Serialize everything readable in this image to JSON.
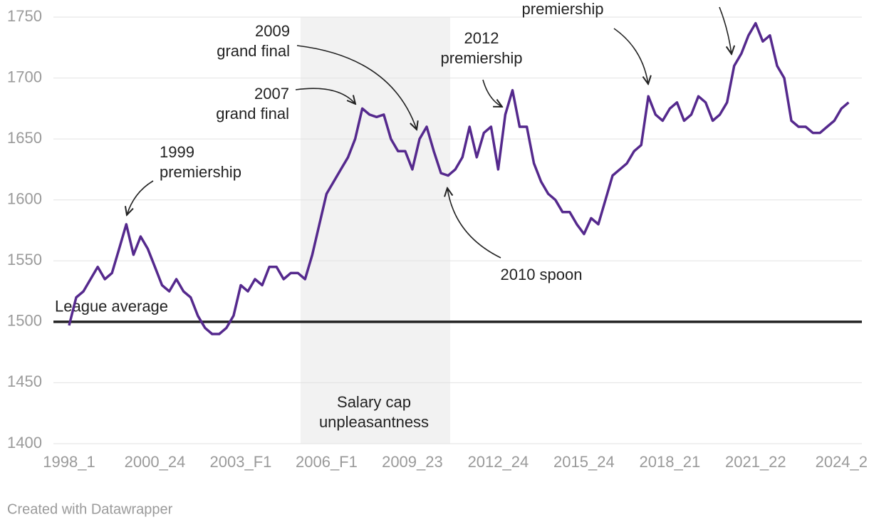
{
  "chart_data": {
    "type": "line",
    "categories": [
      "1998_1",
      null,
      null,
      null,
      null,
      null,
      null,
      null,
      null,
      null,
      null,
      null,
      "2000_24",
      null,
      null,
      null,
      null,
      null,
      null,
      null,
      null,
      null,
      null,
      null,
      "2003_F1",
      null,
      null,
      null,
      null,
      null,
      null,
      null,
      null,
      null,
      null,
      null,
      "2006_F1",
      null,
      null,
      null,
      null,
      null,
      null,
      null,
      null,
      null,
      null,
      null,
      "2009_23",
      null,
      null,
      null,
      null,
      null,
      null,
      null,
      null,
      null,
      null,
      null,
      "2012_24",
      null,
      null,
      null,
      null,
      null,
      null,
      null,
      null,
      null,
      null,
      null,
      "2015_24",
      null,
      null,
      null,
      null,
      null,
      null,
      null,
      null,
      null,
      null,
      null,
      "2018_21",
      null,
      null,
      null,
      null,
      null,
      null,
      null,
      null,
      null,
      null,
      null,
      "2021_22",
      null,
      null,
      null,
      null,
      null,
      null,
      null,
      null,
      null,
      null,
      null,
      "2024_2",
      null
    ],
    "series": [
      {
        "color": "#55298d",
        "values": [
          1497,
          1520,
          1525,
          1535,
          1545,
          1535,
          1540,
          1560,
          1580,
          1555,
          1570,
          1560,
          1545,
          1530,
          1525,
          1535,
          1525,
          1520,
          1505,
          1495,
          1490,
          1490,
          1495,
          1505,
          1530,
          1525,
          1535,
          1530,
          1545,
          1545,
          1535,
          1540,
          1540,
          1535,
          1555,
          1580,
          1605,
          1615,
          1625,
          1635,
          1650,
          1675,
          1670,
          1668,
          1670,
          1650,
          1640,
          1640,
          1625,
          1650,
          1660,
          1640,
          1622,
          1620,
          1625,
          1635,
          1660,
          1635,
          1655,
          1660,
          1625,
          1670,
          1690,
          1660,
          1660,
          1630,
          1615,
          1605,
          1600,
          1590,
          1590,
          1580,
          1572,
          1585,
          1580,
          1600,
          1620,
          1625,
          1630,
          1640,
          1645,
          1685,
          1670,
          1665,
          1675,
          1680,
          1665,
          1670,
          1685,
          1680,
          1665,
          1670,
          1680,
          1710,
          1720,
          1735,
          1745,
          1730,
          1735,
          1710,
          1700,
          1665,
          1660,
          1660,
          1655,
          1655,
          1660,
          1665,
          1675,
          1680
        ]
      }
    ],
    "ylim": [
      1400,
      1750
    ],
    "yticks": [
      1400,
      1450,
      1500,
      1550,
      1600,
      1650,
      1700,
      1750
    ],
    "grid": true,
    "reference_line": {
      "value": 1500,
      "label": "League average"
    },
    "shaded_region": {
      "label": [
        "Salary cap",
        "unpleasantness"
      ]
    },
    "annotations": [
      {
        "text": [
          "1999",
          "premiership"
        ]
      },
      {
        "text": [
          "2007",
          "grand final"
        ]
      },
      {
        "text": [
          "2009",
          "grand final"
        ]
      },
      {
        "text": [
          "2012",
          "premiership"
        ]
      },
      {
        "text": [
          "2010 spoon"
        ]
      },
      {
        "text": [
          "premiership"
        ]
      }
    ],
    "footer": "Created with Datawrapper"
  }
}
